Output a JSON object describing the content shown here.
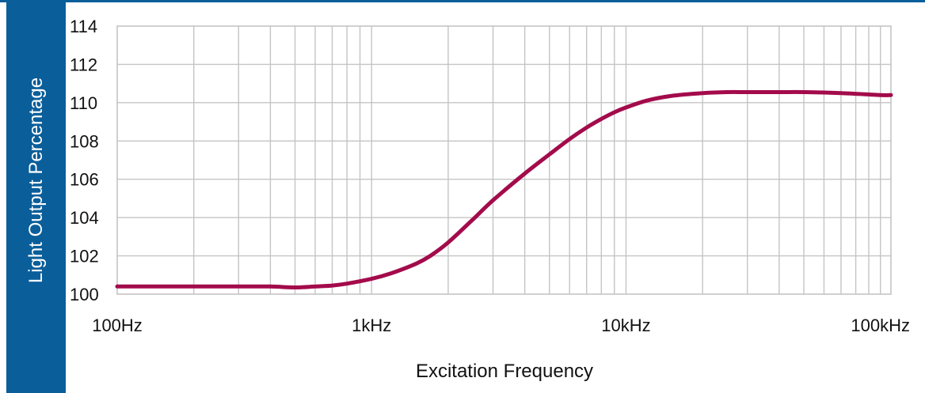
{
  "colors": {
    "brand": "#0a5e9a",
    "curve": "#a30b4b",
    "grid": "#c4c4c4"
  },
  "chart_data": {
    "type": "line",
    "xscale": "log",
    "xlim": [
      100,
      110000
    ],
    "ylim": [
      100,
      114
    ],
    "grid": true,
    "xlabel": "Excitation Frequency",
    "ylabel": "Light Output Percentage",
    "xticks": [
      {
        "value": 100,
        "label": "100Hz"
      },
      {
        "value": 1000,
        "label": "1kHz"
      },
      {
        "value": 10000,
        "label": "10kHz"
      },
      {
        "value": 100000,
        "label": "100kHz"
      }
    ],
    "yticks": [
      100,
      102,
      104,
      106,
      108,
      110,
      112,
      114
    ],
    "series": [
      {
        "x": [
          100,
          200,
          300,
          400,
          500,
          600,
          700,
          800,
          1000,
          1200,
          1500,
          1700,
          2000,
          2500,
          3000,
          4000,
          5000,
          6000,
          7000,
          8000,
          9000,
          10000,
          12000,
          15000,
          20000,
          25000,
          30000,
          40000,
          50000,
          70000,
          100000,
          110000
        ],
        "y": [
          100.4,
          100.4,
          100.4,
          100.4,
          100.35,
          100.4,
          100.45,
          100.55,
          100.8,
          101.1,
          101.6,
          102.0,
          102.7,
          103.9,
          104.9,
          106.3,
          107.3,
          108.1,
          108.7,
          109.15,
          109.5,
          109.75,
          110.1,
          110.35,
          110.5,
          110.55,
          110.55,
          110.55,
          110.55,
          110.5,
          110.4,
          110.4
        ]
      }
    ]
  }
}
